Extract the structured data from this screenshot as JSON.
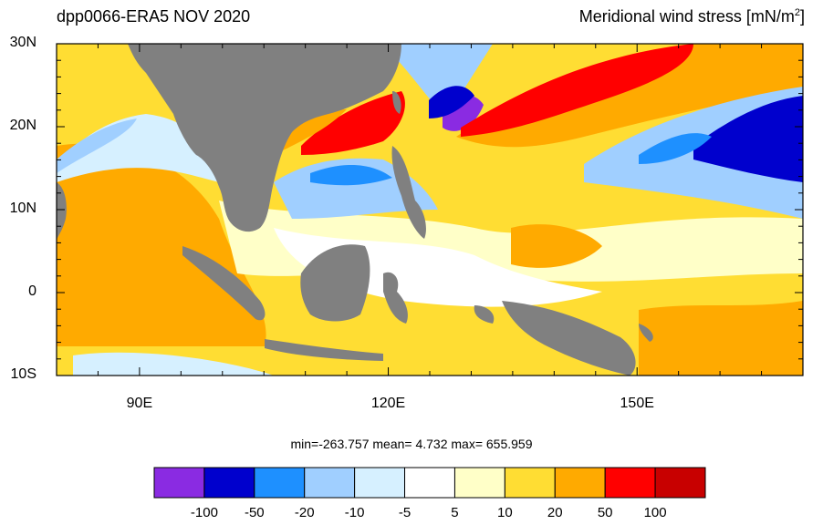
{
  "header": {
    "left_title": "dpp0066-ERA5  NOV 2020",
    "right_title_main": "Meridional wind stress [mN/m",
    "right_title_sup": "2",
    "right_title_end": "]"
  },
  "axes": {
    "lat_labels": [
      "30N",
      "20N",
      "10N",
      "0",
      "10S"
    ],
    "lat_values": [
      30,
      20,
      10,
      0,
      -10
    ],
    "lon_labels": [
      "90E",
      "120E",
      "150E"
    ],
    "lon_values": [
      90,
      120,
      150
    ],
    "lon_range": [
      80,
      170
    ],
    "lat_range": [
      -10,
      30
    ]
  },
  "stats": {
    "text": "min=-263.757  mean=   4.732  max= 655.959"
  },
  "colorbar": {
    "labels": [
      "-100",
      "-50",
      "-20",
      "-10",
      "-5",
      "5",
      "10",
      "20",
      "50",
      "100"
    ],
    "colors": [
      "#8a2be2",
      "#0000cd",
      "#1e90ff",
      "#a0cfff",
      "#d6f0ff",
      "#ffffff",
      "#ffffc8",
      "#ffdd33",
      "#ffaa00",
      "#ff0000",
      "#c80000"
    ]
  },
  "colors": {
    "land": "#808080"
  }
}
